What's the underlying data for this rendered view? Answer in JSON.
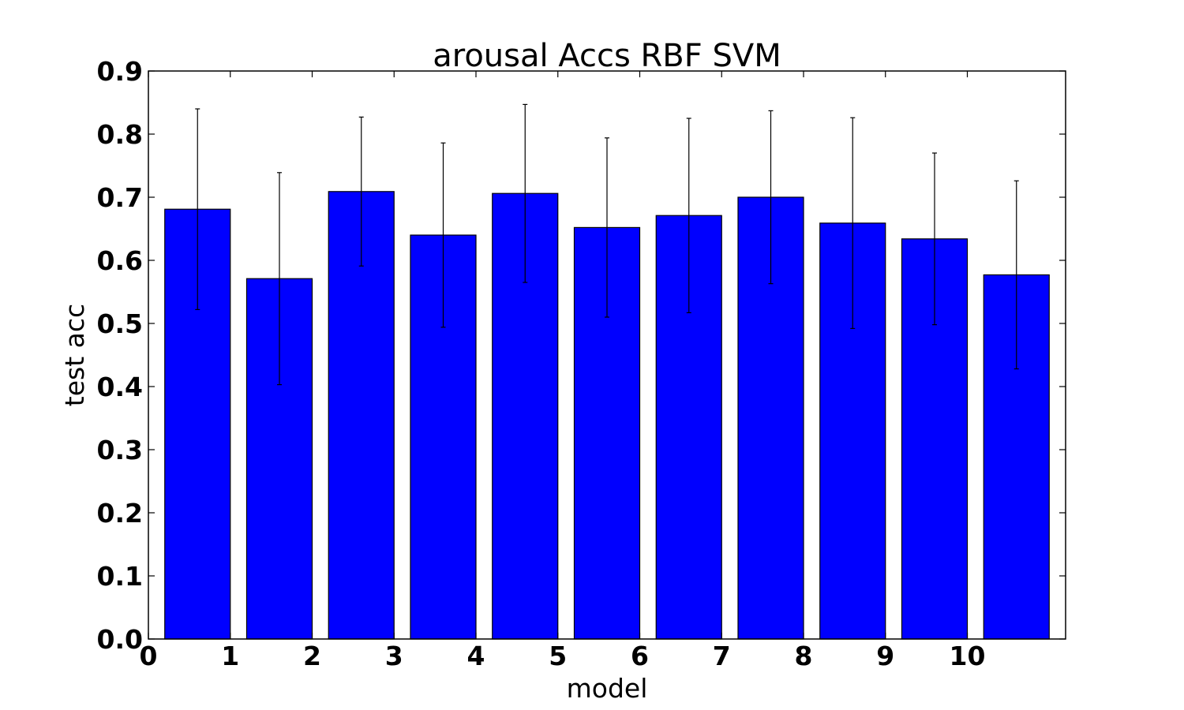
{
  "chart_data": {
    "type": "bar",
    "title": "arousal Accs RBF SVM",
    "xlabel": "model",
    "ylabel": "test acc",
    "categories": [
      "0",
      "1",
      "2",
      "3",
      "4",
      "5",
      "6",
      "7",
      "8",
      "9",
      "10"
    ],
    "x_ticks": [
      "0",
      "1",
      "2",
      "3",
      "4",
      "5",
      "6",
      "7",
      "8",
      "9",
      "10"
    ],
    "values": [
      0.681,
      0.571,
      0.709,
      0.64,
      0.706,
      0.652,
      0.671,
      0.7,
      0.659,
      0.634,
      0.577
    ],
    "errors": [
      0.159,
      0.168,
      0.118,
      0.146,
      0.141,
      0.142,
      0.154,
      0.137,
      0.167,
      0.136,
      0.149
    ],
    "ylim": [
      0.0,
      0.9
    ],
    "y_ticks": [
      "0.0",
      "0.1",
      "0.2",
      "0.3",
      "0.4",
      "0.5",
      "0.6",
      "0.7",
      "0.8",
      "0.9"
    ],
    "xlim": [
      0,
      11.2
    ],
    "bar_color": "#0000ff",
    "edge_color": "#000000",
    "grid": false,
    "legend": "none"
  }
}
